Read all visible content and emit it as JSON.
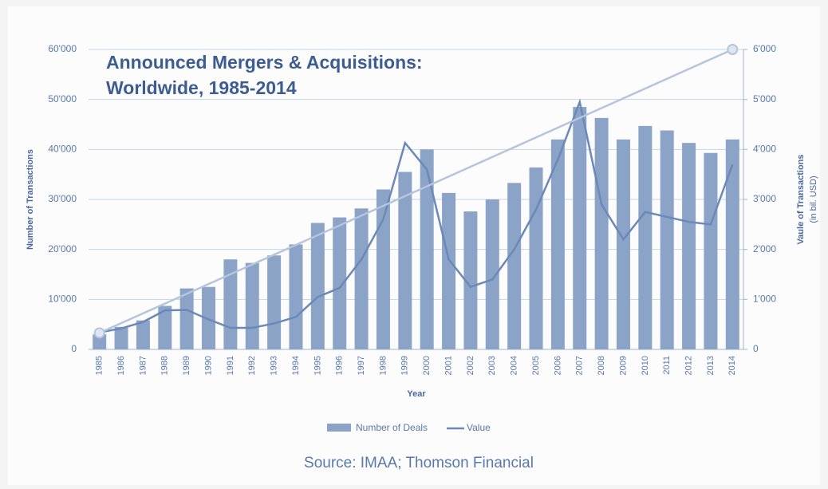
{
  "chart_data": {
    "type": "bar-line",
    "title": [
      "Announced Mergers & Acquisitions:",
      "Worldwide, 1985-2014"
    ],
    "x_label": "Year",
    "y_label": "Number of Transactions",
    "y2_label": [
      "Vaule of Transactions",
      "(in bil. USD)"
    ],
    "source": "Source: IMAA; Thomson Financial",
    "categories": [
      "1985",
      "1986",
      "1987",
      "1988",
      "1989",
      "1990",
      "1991",
      "1992",
      "1993",
      "1994",
      "1995",
      "1996",
      "1997",
      "1998",
      "1999",
      "2000",
      "2001",
      "2002",
      "2003",
      "2004",
      "2005",
      "2006",
      "2007",
      "2008",
      "2009",
      "2010",
      "2011",
      "2012",
      "2013",
      "2014"
    ],
    "series": [
      {
        "name": "Number of Deals",
        "type": "bar",
        "color": "#8ba3c7",
        "values": [
          3000,
          4500,
          5800,
          8700,
          12200,
          12500,
          18000,
          17300,
          18800,
          21000,
          25300,
          26400,
          28200,
          32000,
          35500,
          40000,
          31300,
          27600,
          30000,
          33300,
          36400,
          42000,
          48500,
          46300,
          42000,
          44700,
          43800,
          41300,
          39300,
          42000
        ]
      },
      {
        "name": "Value",
        "type": "line",
        "axis": "y2",
        "color": "#6c88b8",
        "values": [
          340,
          420,
          550,
          780,
          790,
          600,
          430,
          430,
          520,
          650,
          1050,
          1230,
          1800,
          2600,
          4130,
          3600,
          1800,
          1250,
          1400,
          2000,
          2800,
          3800,
          4950,
          2900,
          2200,
          2750,
          2650,
          2550,
          2500,
          3700
        ]
      }
    ],
    "trend": {
      "axis": "y2",
      "color": "#b4c5dd",
      "values": [
        330,
        6000
      ]
    },
    "ylim": [
      0,
      60000
    ],
    "yticks": [
      0,
      {
        "value": 10000,
        "label": "10'000"
      },
      {
        "value": 20000,
        "label": "20'000"
      },
      {
        "value": 30000,
        "label": "30'000"
      },
      {
        "value": 40000,
        "label": "40'000"
      },
      {
        "value": 50000,
        "label": "50'000"
      },
      {
        "value": 60000,
        "label": "60'000"
      }
    ],
    "y2lim": [
      0,
      6000
    ],
    "y2ticks": [
      0,
      {
        "value": 1000,
        "label": "1'000"
      },
      {
        "value": 2000,
        "label": "2'000"
      },
      {
        "value": 3000,
        "label": "3'000"
      },
      {
        "value": 4000,
        "label": "4'000"
      },
      {
        "value": 5000,
        "label": "5'000"
      },
      {
        "value": 6000,
        "label": "6'000"
      }
    ],
    "grid": true
  }
}
